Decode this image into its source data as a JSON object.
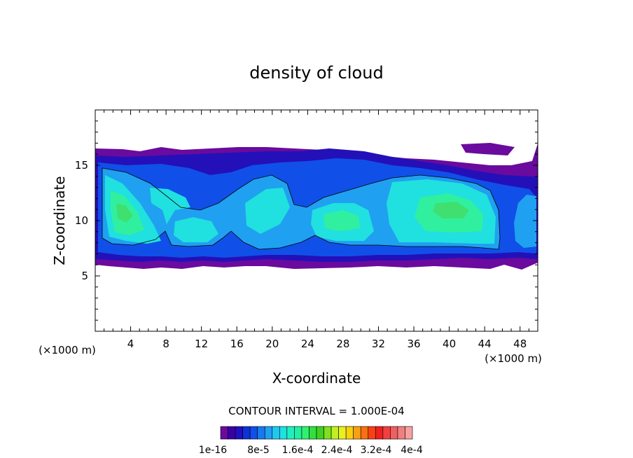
{
  "chart_data": {
    "type": "heatmap",
    "title": "density of cloud",
    "xlabel": "X-coordinate",
    "ylabel": "Z-coordinate",
    "x_unit": "(×1000 m)",
    "z_unit": "(×1000 m)",
    "xlim": [
      0,
      50
    ],
    "ylim": [
      0,
      20
    ],
    "x_ticks": [
      4,
      8,
      12,
      16,
      20,
      24,
      28,
      32,
      36,
      40,
      44,
      48
    ],
    "y_ticks": [
      5,
      10,
      15
    ],
    "contour_interval_text": "CONTOUR INTERVAL = 1.000E-04",
    "colorbar": {
      "colors": [
        "#6a0a9e",
        "#3a00a8",
        "#2010c0",
        "#1030d8",
        "#1050e8",
        "#1878f0",
        "#20a0f0",
        "#20c8f0",
        "#20e0e0",
        "#20f0c0",
        "#20f0a0",
        "#30f070",
        "#30e040",
        "#40d020",
        "#80e020",
        "#c0f020",
        "#e8f020",
        "#f8d010",
        "#f8a010",
        "#f87010",
        "#f84010",
        "#f02020",
        "#f04040",
        "#f06060",
        "#f08080",
        "#f8a0a0"
      ],
      "labels": [
        "1e-16",
        "8e-5",
        "1.6e-4",
        "2.4e-4",
        "3.2e-4",
        "4e-4"
      ]
    }
  }
}
